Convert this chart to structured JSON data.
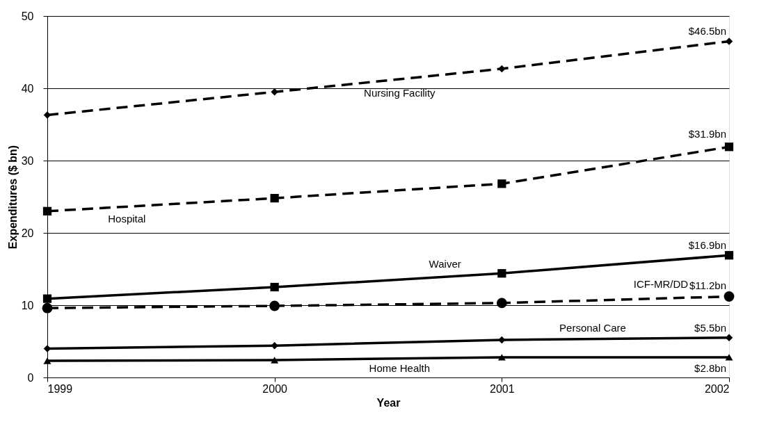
{
  "chart_data": {
    "type": "line",
    "xlabel": "Year",
    "ylabel": "Expenditures ($ bn)",
    "x": [
      1999,
      2000,
      2001,
      2002
    ],
    "xlim": [
      1999,
      2002
    ],
    "xticks": [
      1999,
      2000,
      2001,
      2002
    ],
    "ylim": [
      0,
      50
    ],
    "yticks": [
      0,
      10,
      20,
      30,
      40,
      50
    ],
    "grid": "y",
    "series": [
      {
        "name": "Nursing Facility",
        "color": "#000000",
        "line_style": "dashed",
        "marker": "diamond",
        "values": [
          36.3,
          39.5,
          42.7,
          46.5
        ],
        "value_labels": [
          null,
          null,
          null,
          "$46.5bn"
        ]
      },
      {
        "name": "Hospital",
        "color": "#000000",
        "line_style": "dashed",
        "marker": "square",
        "values": [
          23.0,
          24.8,
          26.8,
          31.9
        ],
        "value_labels": [
          null,
          null,
          null,
          "$31.9bn"
        ]
      },
      {
        "name": "Waiver",
        "color": "#000000",
        "line_style": "solid",
        "marker": "square",
        "values": [
          10.9,
          12.5,
          14.4,
          16.9
        ],
        "value_labels": [
          null,
          null,
          null,
          "$16.9bn"
        ]
      },
      {
        "name": "ICF-MR/DD",
        "color": "#000000",
        "line_style": "dashed",
        "marker": "circle",
        "values": [
          9.6,
          9.9,
          10.3,
          11.2
        ],
        "value_labels": [
          null,
          null,
          null,
          "$11.2bn"
        ]
      },
      {
        "name": "Personal Care",
        "color": "#000000",
        "line_style": "solid",
        "marker": "diamond",
        "values": [
          4.0,
          4.4,
          5.2,
          5.5
        ],
        "value_labels": [
          null,
          null,
          null,
          "$5.5bn"
        ]
      },
      {
        "name": "Home Health",
        "color": "#000000",
        "line_style": "solid",
        "marker": "triangle",
        "values": [
          2.3,
          2.4,
          2.8,
          2.8
        ],
        "value_labels": [
          null,
          null,
          null,
          "$2.8bn"
        ]
      }
    ]
  }
}
